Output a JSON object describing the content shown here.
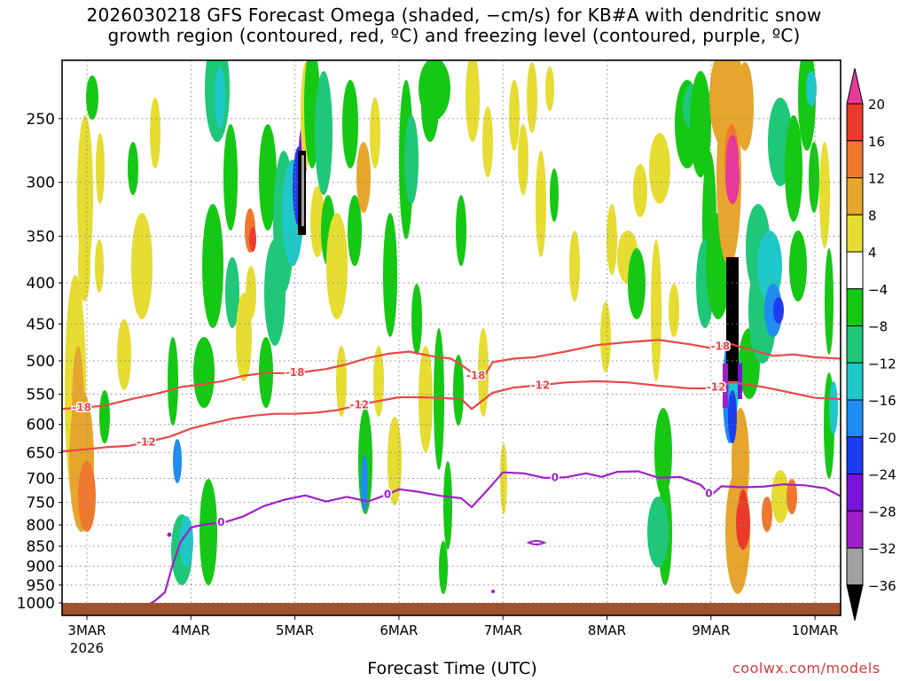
{
  "title": {
    "line1": "2026030218 GFS Forecast Omega (shaded, −cm/s) for KB#A with dendritic snow",
    "line2": "growth region (contoured, red, ºC) and freezing level (contoured, purple, ºC)"
  },
  "credit": "coolwx.com/models",
  "chart_data": {
    "type": "heatmap",
    "title": "2026030218 GFS Forecast Omega (shaded, −cm/s) for KB#A with dendritic snow growth region (contoured, red, ºC) and freezing level (contoured, purple, ºC)",
    "xlabel": "Forecast Time (UTC)",
    "ylabel": "",
    "x_unit": "days after 2026-03-03 00Z",
    "xlim": [
      -0.25,
      7.25
    ],
    "x_ticks": [
      {
        "value": 0,
        "label": "3MAR",
        "sublabel": "2026"
      },
      {
        "value": 1,
        "label": "4MAR"
      },
      {
        "value": 2,
        "label": "5MAR"
      },
      {
        "value": 3,
        "label": "6MAR"
      },
      {
        "value": 4,
        "label": "7MAR"
      },
      {
        "value": 5,
        "label": "8MAR"
      },
      {
        "value": 6,
        "label": "9MAR"
      },
      {
        "value": 7,
        "label": "10MAR"
      }
    ],
    "y_unit": "hPa",
    "ylim": [
      1030,
      200
    ],
    "y_ticks": [
      250,
      300,
      350,
      400,
      450,
      500,
      550,
      600,
      650,
      700,
      750,
      800,
      850,
      900,
      950,
      1000
    ],
    "colorbar": {
      "labels": [
        20,
        16,
        12,
        8,
        4,
        -4,
        -8,
        -12,
        -16,
        -20,
        -24,
        -28,
        -32,
        -36
      ],
      "bins": [
        {
          "range": "> 20",
          "color": "#e6399a"
        },
        {
          "range": "16 to 20",
          "color": "#ec3a2a"
        },
        {
          "range": "12 to 16",
          "color": "#f0782c"
        },
        {
          "range": "8 to 12",
          "color": "#e6a52d"
        },
        {
          "range": "4 to 8",
          "color": "#e6dc32"
        },
        {
          "range": "-4 to 4",
          "color": "#ffffff"
        },
        {
          "range": "-8 to -4",
          "color": "#14c814"
        },
        {
          "range": "-12 to -8",
          "color": "#1ec878"
        },
        {
          "range": "-16 to -12",
          "color": "#1ec8c8"
        },
        {
          "range": "-20 to -16",
          "color": "#1e8cf0"
        },
        {
          "range": "-24 to -20",
          "color": "#1e3cf0"
        },
        {
          "range": "-28 to -24",
          "color": "#7814dc"
        },
        {
          "range": "-32 to -28",
          "color": "#a01ec8"
        },
        {
          "range": "-36 to -32",
          "color": "#a0a0a0"
        },
        {
          "range": "< -36",
          "color": "#000000"
        }
      ]
    },
    "series": [
      {
        "name": "-18 ºC isotherm",
        "color": "#e84848",
        "label": "-18",
        "x": [
          -0.25,
          0,
          0.15,
          0.3,
          0.45,
          0.6,
          0.75,
          0.9,
          1.1,
          1.3,
          1.5,
          1.7,
          1.9,
          2.1,
          2.3,
          2.5,
          2.7,
          2.9,
          3.1,
          3.3,
          3.5,
          3.6,
          3.8,
          3.9,
          4.1,
          4.3,
          4.6,
          4.9,
          5.2,
          5.5,
          5.8,
          6.0,
          6.2,
          6.4,
          6.6,
          6.8,
          7.0,
          7.25
        ],
        "y": [
          574,
          571,
          569,
          563,
          557,
          552,
          546,
          539,
          535,
          530,
          522,
          518,
          518,
          516,
          512,
          505,
          496,
          490,
          487,
          493,
          497,
          506,
          528,
          502,
          497,
          495,
          487,
          478,
          474,
          471,
          477,
          482,
          477,
          485,
          493,
          491,
          495,
          497
        ]
      },
      {
        "name": "-12 ºC isotherm",
        "color": "#e84848",
        "label": "-12",
        "x": [
          -0.25,
          0,
          0.2,
          0.4,
          0.6,
          0.8,
          1.0,
          1.2,
          1.4,
          1.6,
          1.8,
          2.0,
          2.2,
          2.4,
          2.6,
          2.8,
          3.0,
          3.2,
          3.4,
          3.6,
          3.7,
          3.9,
          4.1,
          4.3,
          4.6,
          4.9,
          5.2,
          5.5,
          5.8,
          6.0,
          6.2,
          6.4,
          6.6,
          6.8,
          7.0,
          7.25
        ],
        "y": [
          648,
          644,
          640,
          638,
          630,
          621,
          607,
          598,
          590,
          585,
          582,
          582,
          580,
          576,
          568,
          561,
          555,
          555,
          556,
          558,
          574,
          548,
          540,
          537,
          532,
          530,
          532,
          537,
          541,
          541,
          532,
          536,
          542,
          549,
          556,
          558
        ]
      },
      {
        "name": "0 ºC freezing level",
        "color": "#a020c8",
        "label": "0",
        "x": [
          0.35,
          0.45,
          0.55,
          0.65,
          0.75,
          0.82,
          0.9,
          1.0,
          1.1,
          1.2,
          1.35,
          1.5,
          1.7,
          1.9,
          2.1,
          2.3,
          2.5,
          2.7,
          2.9,
          3.0,
          3.2,
          3.4,
          3.6,
          3.7,
          3.85,
          4.0,
          4.2,
          4.4,
          4.6,
          4.8,
          4.95,
          5.1,
          5.3,
          5.5,
          5.7,
          5.9,
          6.0,
          6.1,
          6.3,
          6.5,
          6.7,
          6.9,
          7.1,
          7.25
        ],
        "y": [
          1030,
          1022,
          1012,
          995,
          970,
          900,
          840,
          806,
          800,
          797,
          792,
          781,
          758,
          744,
          735,
          748,
          738,
          748,
          732,
          722,
          728,
          736,
          741,
          760,
          724,
          688,
          690,
          699,
          698,
          690,
          697,
          687,
          686,
          699,
          697,
          713,
          735,
          716,
          718,
          717,
          712,
          714,
          720,
          737
        ]
      }
    ],
    "annotations": [
      "-18",
      "-12",
      "-18",
      "-12",
      "-18",
      "-12",
      "-18",
      "-12",
      "0",
      "0",
      "0",
      "0"
    ]
  }
}
